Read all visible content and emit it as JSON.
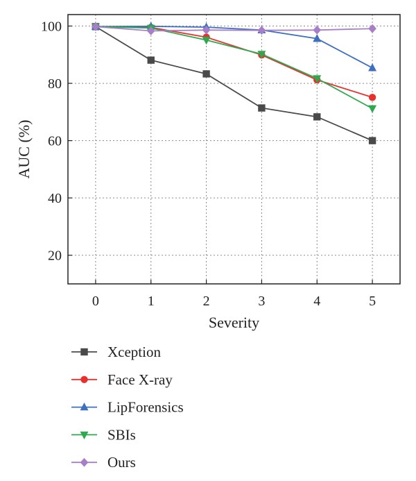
{
  "chart_data": {
    "type": "line",
    "title": "",
    "xlabel": "Severity",
    "ylabel": "AUC (%)",
    "x": [
      0,
      1,
      2,
      3,
      4,
      5
    ],
    "xlim": [
      -0.5,
      5.5
    ],
    "ylim": [
      10,
      104
    ],
    "xticks": [
      0,
      1,
      2,
      3,
      4,
      5
    ],
    "yticks": [
      20,
      40,
      60,
      80,
      100
    ],
    "grid": true,
    "legend_position": "bottom",
    "series": [
      {
        "name": "Xception",
        "color": "#4a4a4a",
        "marker": "square",
        "values": [
          99.8,
          88.1,
          83.3,
          71.4,
          68.3,
          60.0
        ]
      },
      {
        "name": "Face X-ray",
        "color": "#e8312f",
        "marker": "circle",
        "values": [
          99.8,
          99.5,
          96.1,
          89.9,
          81.2,
          75.1
        ]
      },
      {
        "name": "LipForensics",
        "color": "#3f6fbf",
        "marker": "triangle-up",
        "values": [
          99.8,
          99.9,
          99.6,
          98.6,
          95.6,
          85.4
        ]
      },
      {
        "name": "SBIs",
        "color": "#2fa84f",
        "marker": "triangle-down",
        "values": [
          99.8,
          99.3,
          95.1,
          90.2,
          81.7,
          71.2
        ]
      },
      {
        "name": "Ours",
        "color": "#a77fc9",
        "marker": "diamond",
        "values": [
          99.8,
          98.3,
          98.6,
          98.5,
          98.6,
          99.1
        ]
      }
    ]
  }
}
